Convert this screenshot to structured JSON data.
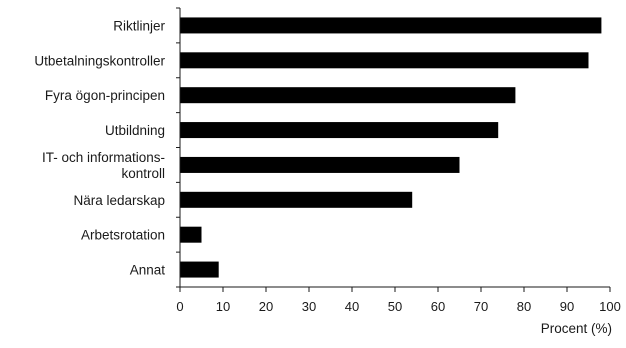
{
  "chart_data": {
    "type": "bar",
    "orientation": "horizontal",
    "categories": [
      [
        "Riktlinjer"
      ],
      [
        "Utbetalningskontroller"
      ],
      [
        "Fyra ögon-principen"
      ],
      [
        "Utbildning"
      ],
      [
        "IT- och informations-",
        "kontroll"
      ],
      [
        "Nära ledarskap"
      ],
      [
        "Arbetsrotation"
      ],
      [
        "Annat"
      ]
    ],
    "values": [
      98,
      95,
      78,
      74,
      65,
      54,
      5,
      9
    ],
    "xlabel": "Procent (%)",
    "ylabel": "",
    "title": "",
    "xlim": [
      0,
      100
    ],
    "xticks": [
      0,
      10,
      20,
      30,
      40,
      50,
      60,
      70,
      80,
      90,
      100
    ],
    "grid": false,
    "bar_color": "#000000",
    "axis_color": "#1a1a1a"
  }
}
